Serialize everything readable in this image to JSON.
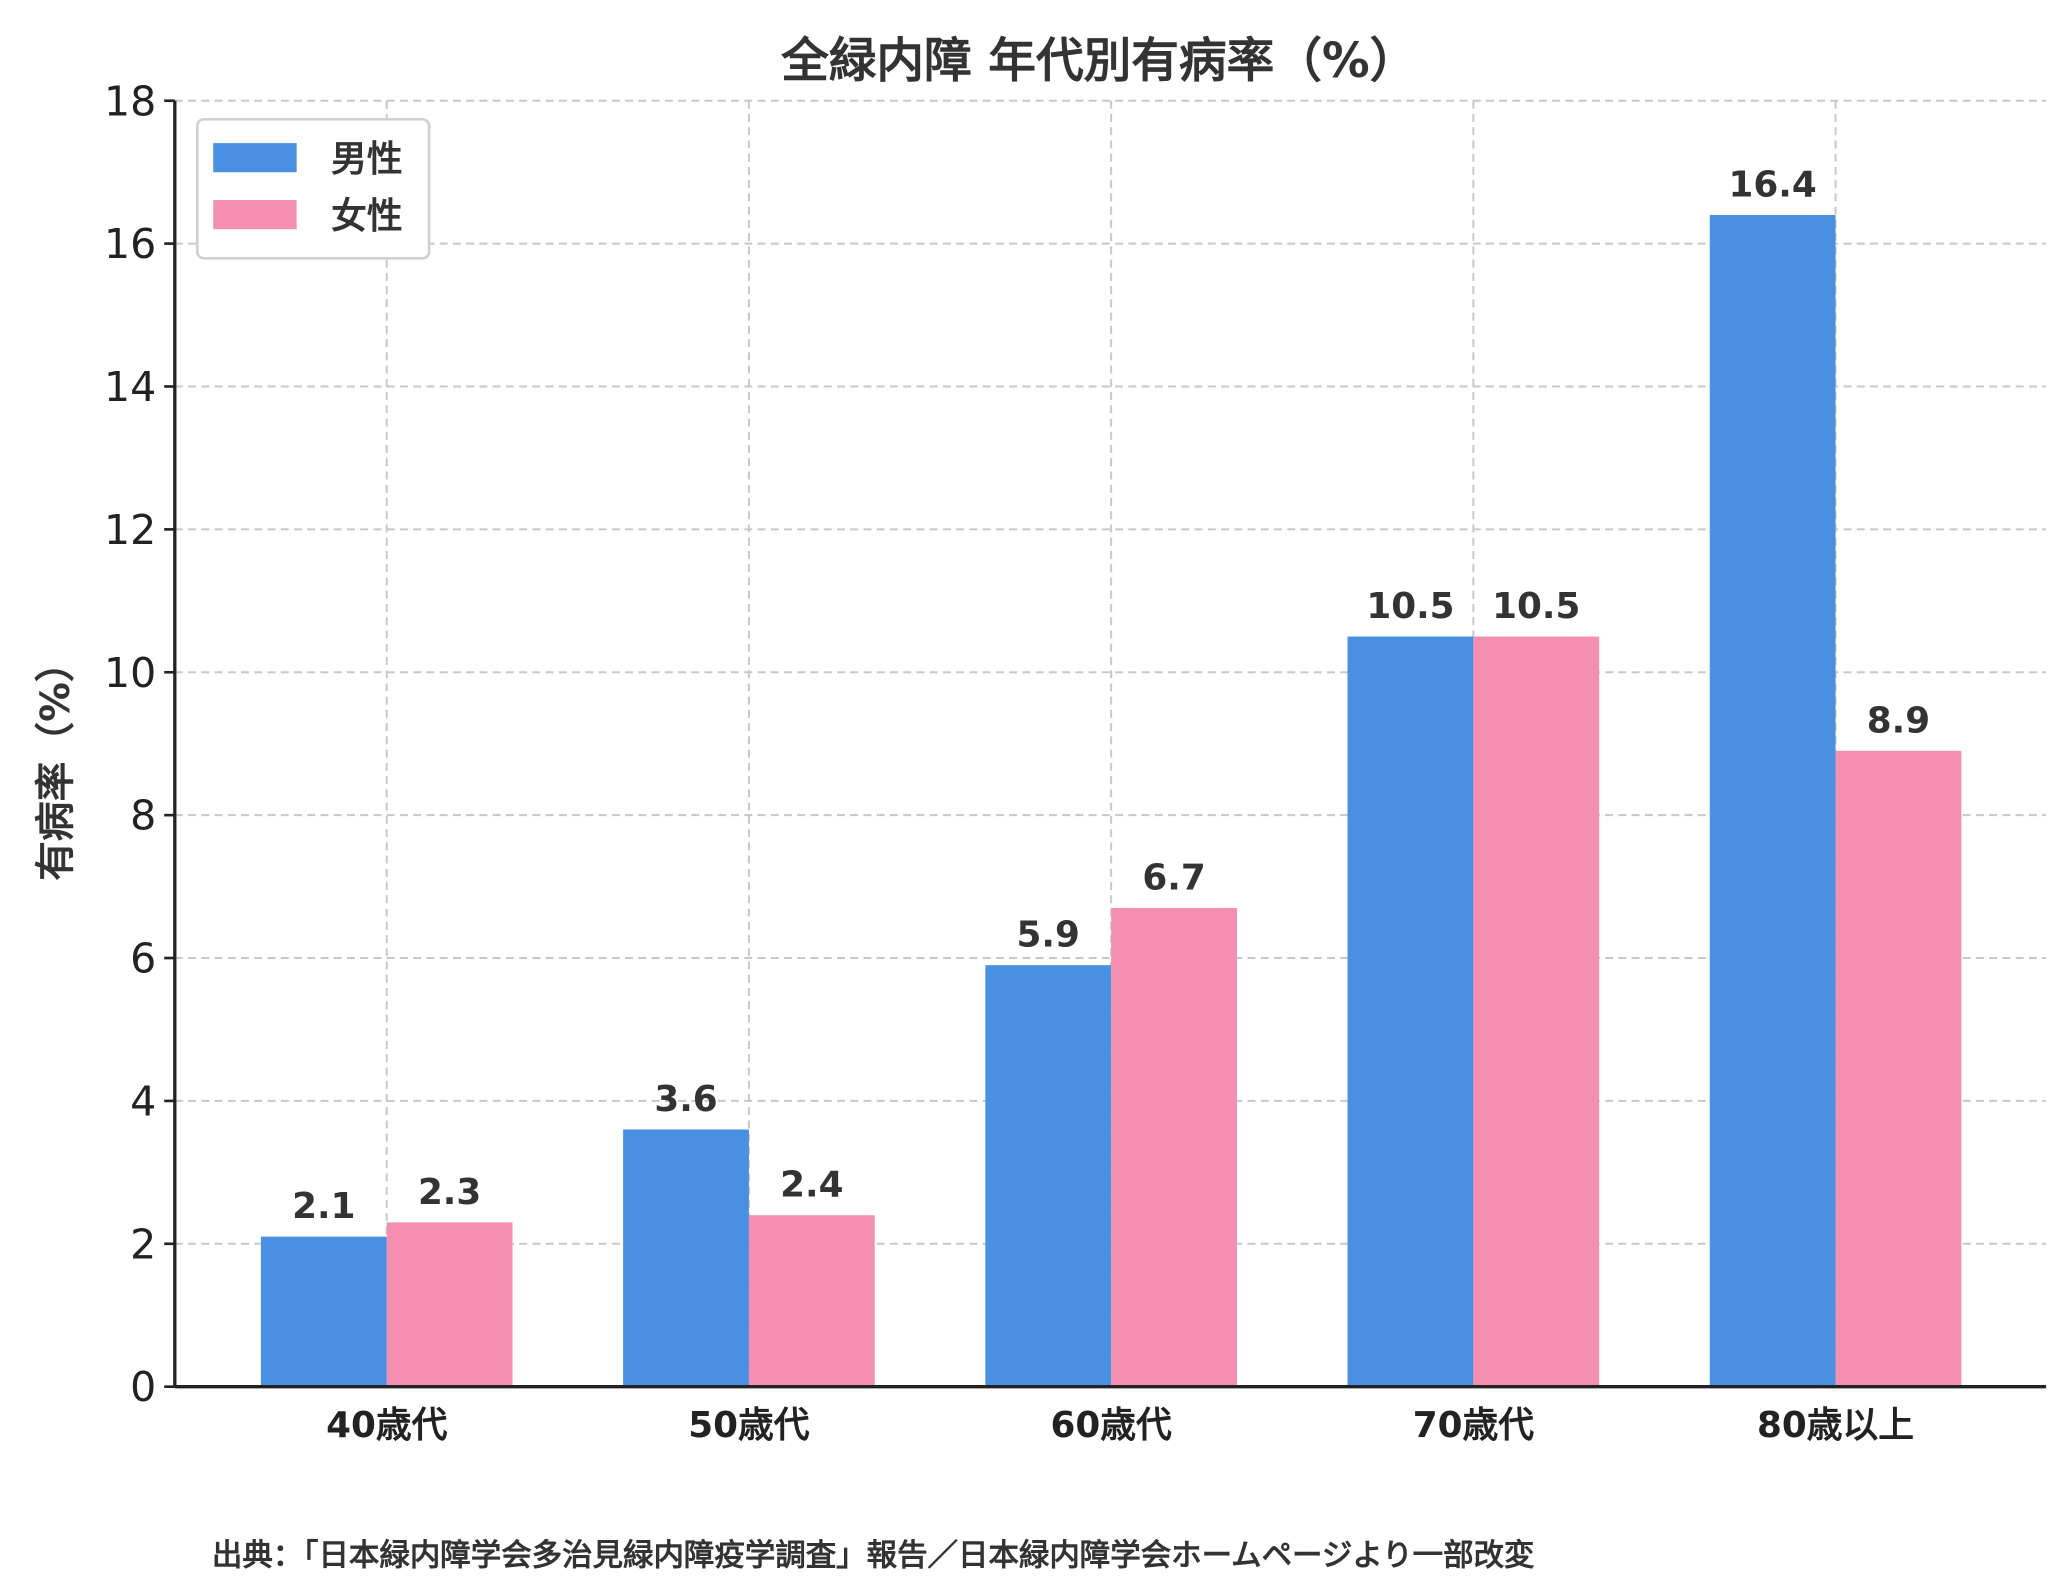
{
  "chart_data": {
    "type": "bar",
    "title": "全緑内障 年代別有病率（%）",
    "xlabel": "",
    "ylabel": "有病率（%）",
    "ylim": [
      0,
      18
    ],
    "yticks": [
      0,
      2,
      4,
      6,
      8,
      10,
      12,
      14,
      16,
      18
    ],
    "grid": true,
    "legend_position": "top-left",
    "categories": [
      "40歳代",
      "50歳代",
      "60歳代",
      "70歳代",
      "80歳以上"
    ],
    "series": [
      {
        "name": "男性",
        "color": "#4a90e2",
        "values": [
          2.1,
          3.6,
          5.9,
          10.5,
          16.4
        ]
      },
      {
        "name": "女性",
        "color": "#f48fb1",
        "values": [
          2.3,
          2.4,
          6.7,
          10.5,
          8.9
        ]
      }
    ],
    "source_note": "出典：「日本緑内障学会多治見緑内障疫学調査」報告／日本緑内障学会ホームページより一部改変"
  }
}
